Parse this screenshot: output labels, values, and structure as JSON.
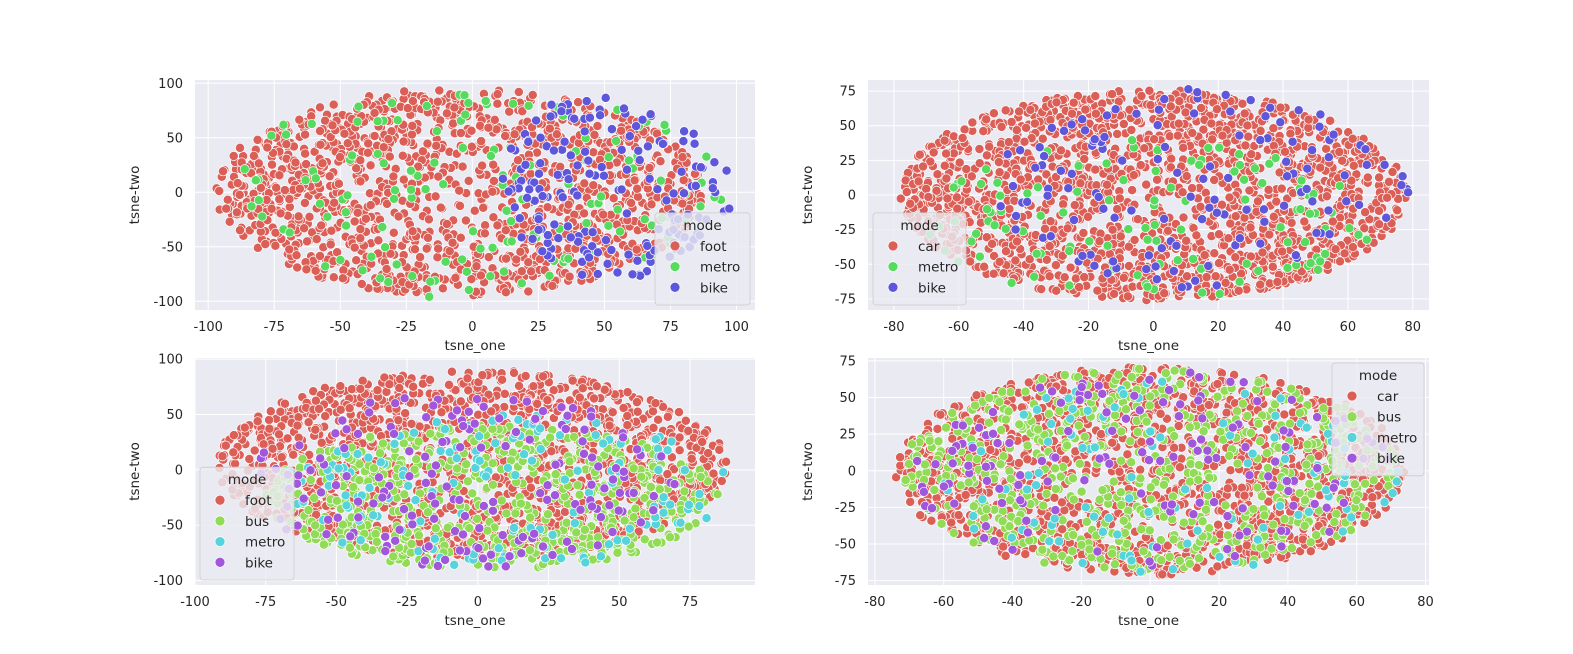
{
  "chart_data": [
    {
      "type": "scatter",
      "xlabel": "tsne_one",
      "ylabel": "tsne-two",
      "xlim": [
        -105,
        107
      ],
      "ylim": [
        -108,
        103
      ],
      "xticks": [
        -100,
        -75,
        -50,
        -25,
        0,
        25,
        50,
        75,
        100
      ],
      "yticks": [
        -100,
        -50,
        0,
        50,
        100
      ],
      "legend": {
        "title": "mode",
        "position": "lower-right"
      },
      "grid": true,
      "cloud": {
        "xmin": -98,
        "xmax": 100,
        "ymin": -100,
        "ymax": 100
      },
      "series": [
        {
          "name": "foot",
          "color": "#db5f57",
          "count": 1400,
          "region": {
            "cx": -5,
            "cy": 0,
            "rx": 92,
            "ry": 95
          }
        },
        {
          "name": "metro",
          "color": "#57db5f",
          "count": 140,
          "region": {
            "cx": 0,
            "cy": 0,
            "rx": 95,
            "ry": 98
          }
        },
        {
          "name": "bike",
          "color": "#5f57db",
          "count": 170,
          "region": {
            "cx": 55,
            "cy": 10,
            "rx": 45,
            "ry": 90
          }
        }
      ]
    },
    {
      "type": "scatter",
      "xlabel": "tsne_one",
      "ylabel": "tsne-two",
      "xlim": [
        -88,
        85
      ],
      "ylim": [
        -83,
        83
      ],
      "xticks": [
        -80,
        -60,
        -40,
        -20,
        0,
        20,
        40,
        60,
        80
      ],
      "yticks": [
        -75,
        -50,
        -25,
        0,
        25,
        50,
        75
      ],
      "legend": {
        "title": "mode",
        "position": "lower-left"
      },
      "grid": true,
      "cloud": {
        "xmin": -80,
        "xmax": 79,
        "ymin": -77,
        "ymax": 78
      },
      "series": [
        {
          "name": "car",
          "color": "#db5f57",
          "count": 1800,
          "region": {
            "cx": 0,
            "cy": 0,
            "rx": 78,
            "ry": 76
          }
        },
        {
          "name": "metro",
          "color": "#57db5f",
          "count": 110,
          "region": {
            "cx": 0,
            "cy": -20,
            "rx": 70,
            "ry": 60
          }
        },
        {
          "name": "bike",
          "color": "#5f57db",
          "count": 130,
          "region": {
            "cx": 15,
            "cy": 5,
            "rx": 64,
            "ry": 72
          }
        }
      ]
    },
    {
      "type": "scatter",
      "xlabel": "tsne_one",
      "ylabel": "tsne-two",
      "xlim": [
        -100,
        98
      ],
      "ylim": [
        -104,
        101
      ],
      "xticks": [
        -100,
        -75,
        -50,
        -25,
        0,
        25,
        50,
        75
      ],
      "yticks": [
        -100,
        -50,
        0,
        50,
        100
      ],
      "legend": {
        "title": "mode",
        "position": "lower-left"
      },
      "grid": true,
      "cloud": {
        "xmin": -93,
        "xmax": 92,
        "ymin": -94,
        "ymax": 92
      },
      "series": [
        {
          "name": "foot",
          "color": "#db5f57",
          "count": 1500,
          "region": {
            "cx": -2,
            "cy": 5,
            "rx": 90,
            "ry": 85
          }
        },
        {
          "name": "bus",
          "color": "#91db57",
          "count": 650,
          "region": {
            "cx": 5,
            "cy": -25,
            "rx": 80,
            "ry": 65
          }
        },
        {
          "name": "metro",
          "color": "#57d3db",
          "count": 150,
          "region": {
            "cx": 10,
            "cy": -20,
            "rx": 80,
            "ry": 70
          }
        },
        {
          "name": "bike",
          "color": "#a157db",
          "count": 170,
          "region": {
            "cx": -5,
            "cy": -10,
            "rx": 75,
            "ry": 80
          }
        }
      ]
    },
    {
      "type": "scatter",
      "xlabel": "tsne_one",
      "ylabel": "tsne-two",
      "xlim": [
        -82,
        81
      ],
      "ylim": [
        -78,
        77
      ],
      "xticks": [
        -80,
        -60,
        -40,
        -20,
        0,
        20,
        40,
        60,
        80
      ],
      "yticks": [
        -75,
        -50,
        -25,
        0,
        25,
        50,
        75
      ],
      "legend": {
        "title": "mode",
        "position": "upper-right"
      },
      "grid": true,
      "cloud": {
        "xmin": -76,
        "xmax": 74,
        "ymin": -72,
        "ymax": 73
      },
      "series": [
        {
          "name": "car",
          "color": "#db5f57",
          "count": 1500,
          "region": {
            "cx": 0,
            "cy": 0,
            "rx": 74,
            "ry": 71
          }
        },
        {
          "name": "bus",
          "color": "#91db57",
          "count": 650,
          "region": {
            "cx": 0,
            "cy": 0,
            "rx": 72,
            "ry": 70
          }
        },
        {
          "name": "metro",
          "color": "#57d3db",
          "count": 110,
          "region": {
            "cx": 5,
            "cy": -5,
            "rx": 68,
            "ry": 66
          }
        },
        {
          "name": "bike",
          "color": "#a157db",
          "count": 140,
          "region": {
            "cx": 0,
            "cy": 0,
            "rx": 70,
            "ry": 68
          }
        }
      ]
    }
  ]
}
